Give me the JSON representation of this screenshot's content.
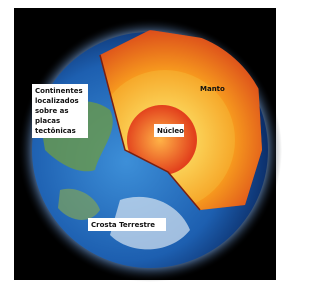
{
  "labels": {
    "continents": {
      "lines": [
        "Continentes",
        "localizados",
        "sobre as",
        "placas",
        "tectônicas"
      ]
    },
    "mantle": "Manto",
    "core": "Núcleo",
    "crust": "Crosta Terrestre"
  }
}
